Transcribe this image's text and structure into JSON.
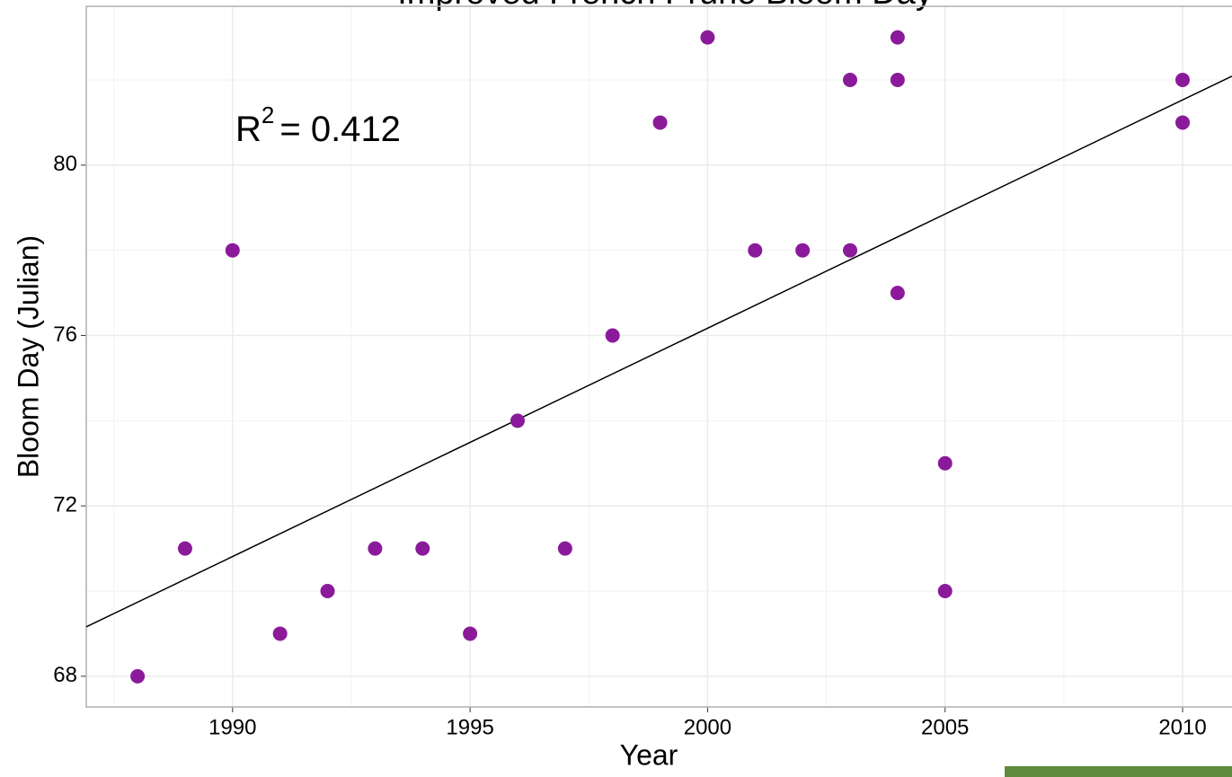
{
  "chart_data": {
    "type": "scatter",
    "title": "Improved French Prune Bloom Day",
    "x_label": "Year",
    "y_label": "Bloom Day (Julian)",
    "x": [
      1988,
      1989,
      1990,
      1991,
      1992,
      1993,
      1994,
      1995,
      1996,
      1997,
      1998,
      1999,
      2000,
      2001,
      2002,
      2003,
      2003,
      2004,
      2004,
      2004,
      2005,
      2005,
      2010,
      2010
    ],
    "values": [
      68,
      71,
      78,
      69,
      70,
      71,
      71,
      69,
      74,
      71,
      76,
      81,
      83,
      78,
      78,
      82,
      78,
      83,
      82,
      77,
      73,
      70,
      82,
      81
    ],
    "color": "#8b1a9b",
    "fit": {
      "x": [
        1986.92,
        2011.04
      ],
      "y": [
        69.16,
        82.09
      ],
      "color": "#000000"
    },
    "annotation": {
      "base": "R",
      "superscript": "2",
      "text": "= 0.412"
    },
    "xlim": [
      1986.92,
      2011.04
    ],
    "ylim": [
      67.28,
      83.73
    ],
    "xticks": [
      1990,
      1995,
      2000,
      2005,
      2010
    ],
    "yticks": [
      68,
      72,
      76,
      80
    ],
    "minor_xticks": [
      1987.5,
      1992.5,
      1997.5,
      2002.5,
      2007.5
    ],
    "minor_yticks": [
      70,
      74,
      78,
      82
    ],
    "grid": true
  }
}
